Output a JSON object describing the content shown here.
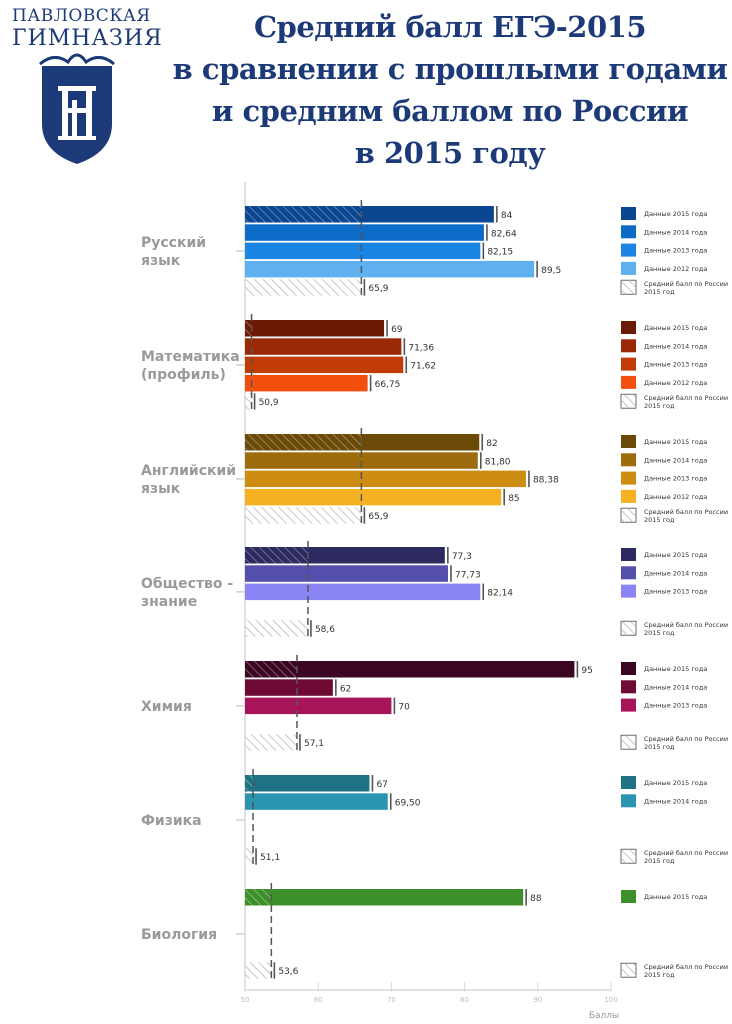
{
  "logo": {
    "line1": "ПАВЛОВСКАЯ",
    "line2": "ГИМНАЗИЯ"
  },
  "title_lines": [
    "Средний балл ЕГЭ-2015",
    "в сравнении с прошлыми годами",
    "и средним баллом по России",
    "в 2015 году"
  ],
  "chart_data": {
    "type": "bar",
    "orientation": "horizontal",
    "xlim": [
      50,
      100
    ],
    "xticks": [
      50,
      60,
      70,
      80,
      90,
      100
    ],
    "xlabel": "Баллы",
    "groups": [
      {
        "name": "Русский язык",
        "name_lines": [
          "Русский",
          "язык"
        ],
        "bars": [
          {
            "year_label": "Данные 2015 года",
            "value": 84,
            "label": "84",
            "color": "#0a4790"
          },
          {
            "year_label": "Данные 2014 года",
            "value": 82.64,
            "label": "82,64",
            "color": "#0c6bc6"
          },
          {
            "year_label": "Данные 2013 года",
            "value": 82.15,
            "label": "82,15",
            "color": "#1a85e2"
          },
          {
            "year_label": "Данные 2012 года",
            "value": 89.5,
            "label": "89,5",
            "color": "#5eb0ef"
          }
        ],
        "russia": {
          "year_label": "Средний балл по России 2015 год",
          "value": 65.9,
          "label": "65,9"
        }
      },
      {
        "name": "Математика (профиль)",
        "name_lines": [
          "Математика",
          "(профиль)"
        ],
        "bars": [
          {
            "year_label": "Данные 2015 года",
            "value": 69,
            "label": "69",
            "color": "#6b1a05"
          },
          {
            "year_label": "Данные 2014 года",
            "value": 71.36,
            "label": "71,36",
            "color": "#9a2a06"
          },
          {
            "year_label": "Данные 2013 года",
            "value": 71.62,
            "label": "71,62",
            "color": "#c23c08"
          },
          {
            "year_label": "Данные 2012 года",
            "value": 66.75,
            "label": "66,75",
            "color": "#f24e0e"
          }
        ],
        "russia": {
          "year_label": "Средний балл по России 2015 год",
          "value": 50.9,
          "label": "50,9"
        }
      },
      {
        "name": "Английский язык",
        "name_lines": [
          "Английский",
          "язык"
        ],
        "bars": [
          {
            "year_label": "Данные 2015 года",
            "value": 82,
            "label": "82",
            "color": "#6a4a06"
          },
          {
            "year_label": "Данные 2014 года",
            "value": 81.8,
            "label": "81,80",
            "color": "#9d6c0c"
          },
          {
            "year_label": "Данные 2013 года",
            "value": 88.38,
            "label": "88,38",
            "color": "#cd8c12"
          },
          {
            "year_label": "Данные 2012 года",
            "value": 85,
            "label": "85",
            "color": "#f6b122"
          }
        ],
        "russia": {
          "year_label": "Средний балл по России 2015 год",
          "value": 65.9,
          "label": "65,9"
        }
      },
      {
        "name": "Общество - знание",
        "name_lines": [
          "Общество -",
          "знание"
        ],
        "bars": [
          {
            "year_label": "Данные 2015 года",
            "value": 77.3,
            "label": "77,3",
            "color": "#2c2a5e"
          },
          {
            "year_label": "Данные 2014 года",
            "value": 77.73,
            "label": "77,73",
            "color": "#544eac"
          },
          {
            "year_label": "Данные 2013 года",
            "value": 82.14,
            "label": "82,14",
            "color": "#8a84f4"
          }
        ],
        "russia": {
          "year_label": "Средний балл по России 2015 год",
          "value": 58.6,
          "label": "58,6"
        }
      },
      {
        "name": "Химия",
        "name_lines": [
          "Химия"
        ],
        "bars": [
          {
            "year_label": "Данные 2015 года",
            "value": 95,
            "label": "95",
            "color": "#3a0621"
          },
          {
            "year_label": "Данные 2014 года",
            "value": 62,
            "label": "62",
            "color": "#6e0a34"
          },
          {
            "year_label": "Данные 2013 года",
            "value": 70,
            "label": "70",
            "color": "#a8145a"
          }
        ],
        "russia": {
          "year_label": "Средний балл по России 2015 год",
          "value": 57.1,
          "label": "57,1"
        }
      },
      {
        "name": "Физика",
        "name_lines": [
          "Физика"
        ],
        "bars": [
          {
            "year_label": "Данные 2015 года",
            "value": 67,
            "label": "67",
            "color": "#1f7284"
          },
          {
            "year_label": "Данные 2014 года",
            "value": 69.5,
            "label": "69,50",
            "color": "#2a95b0"
          }
        ],
        "russia": {
          "year_label": "Средний балл по России 2015 год",
          "value": 51.1,
          "label": "51,1"
        }
      },
      {
        "name": "Биология",
        "name_lines": [
          "Биология"
        ],
        "bars": [
          {
            "year_label": "Данные 2015 года",
            "value": 88,
            "label": "88",
            "color": "#3d8f2a"
          }
        ],
        "russia": {
          "year_label": "Средний балл по России 2015 год",
          "value": 53.6,
          "label": "53,6"
        }
      }
    ]
  }
}
